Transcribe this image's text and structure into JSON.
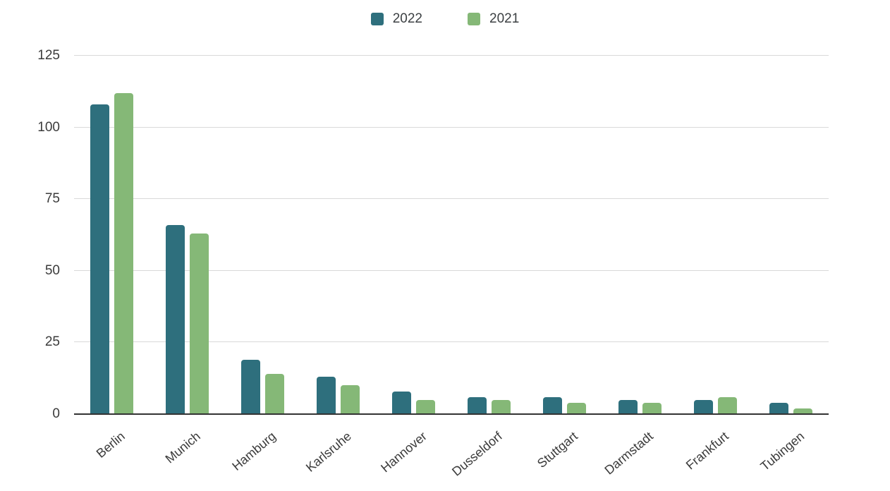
{
  "chart_data": {
    "type": "bar",
    "title": "",
    "xlabel": "",
    "ylabel": "",
    "categories": [
      "Berlin",
      "Munich",
      "Hamburg",
      "Karlsruhe",
      "Hannover",
      "Dusseldorf",
      "Stuttgart",
      "Darmstadt",
      "Frankfurt",
      "Tubingen"
    ],
    "series": [
      {
        "name": "2022",
        "color": "#2E6F7D",
        "values": [
          108,
          66,
          19,
          13,
          8,
          6,
          6,
          5,
          5,
          4
        ]
      },
      {
        "name": "2021",
        "color": "#85B877",
        "values": [
          112,
          63,
          14,
          10,
          5,
          5,
          4,
          4,
          6,
          2
        ]
      }
    ],
    "ylim": [
      0,
      125
    ],
    "yticks": [
      0,
      25,
      50,
      75,
      100,
      125
    ],
    "grid": true,
    "legend_position": "top-center",
    "axis_color": "#333333",
    "gridline_color": "#d9d9d9",
    "label_color": "#3b3b3b",
    "background_color": "#ffffff"
  }
}
